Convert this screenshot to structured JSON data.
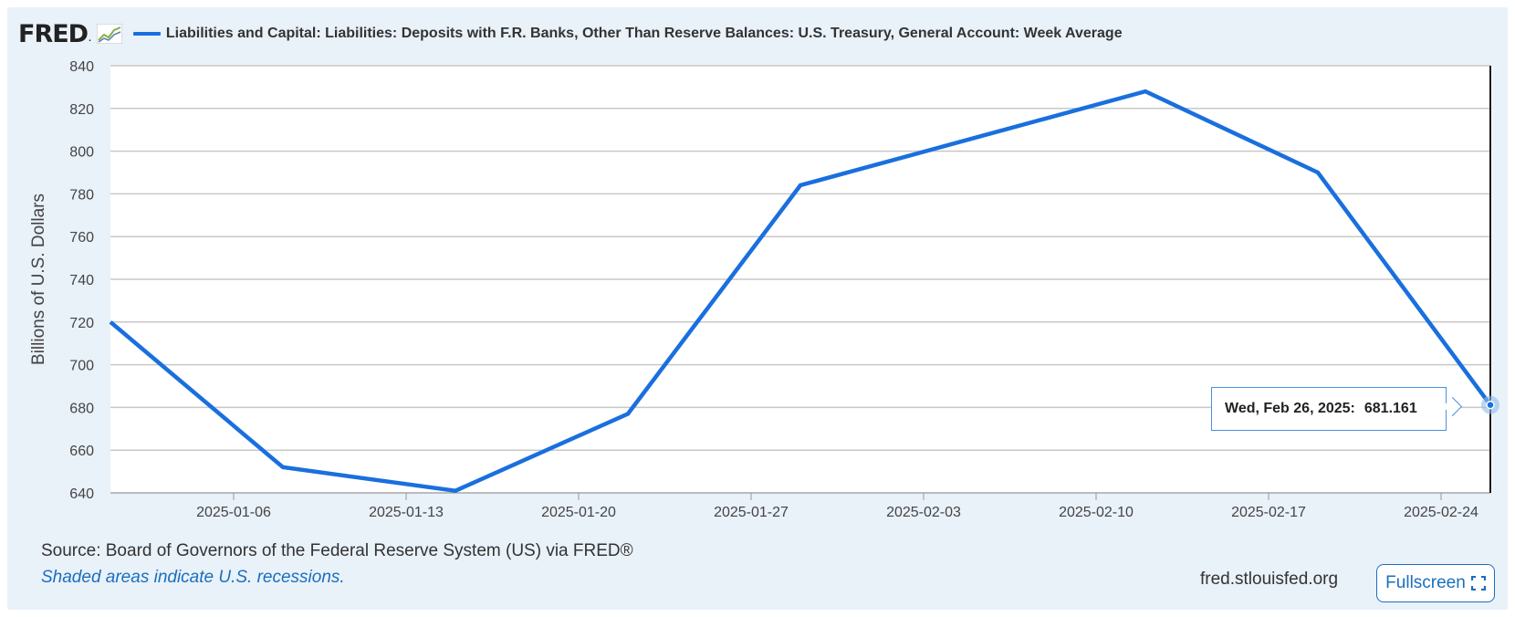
{
  "header": {
    "logo_text": "FRED",
    "logo_dot": ".",
    "legend_label": "Liabilities and Capital: Liabilities: Deposits with F.R. Banks, Other Than Reserve Balances: U.S. Treasury, General Account: Week Average"
  },
  "tooltip": {
    "date": "Wed, Feb 26, 2025:",
    "value": "681.161"
  },
  "footer": {
    "source": "Source: Board of Governors of the Federal Reserve System (US) via FRED®",
    "note": "Shaded areas indicate U.S. recessions.",
    "site": "fred.stlouisfed.org",
    "fullscreen_label": "Fullscreen"
  },
  "colors": {
    "series": "#1a6fde",
    "background": "#e9f1f9",
    "plot": "#ffffff",
    "grid": "#c8c8c8",
    "link": "#1a6fbd"
  },
  "chart_data": {
    "type": "line",
    "title": "",
    "xlabel": "",
    "ylabel": "Billions of U.S. Dollars",
    "x_tick_labels": [
      "2025-01-06",
      "2025-01-13",
      "2025-01-20",
      "2025-01-27",
      "2025-02-03",
      "2025-02-10",
      "2025-02-17",
      "2025-02-24"
    ],
    "y_tick_labels": [
      "640",
      "660",
      "680",
      "700",
      "720",
      "740",
      "760",
      "780",
      "800",
      "820",
      "840"
    ],
    "ylim": [
      640,
      840
    ],
    "xlim": [
      "2025-01-01",
      "2025-02-26"
    ],
    "grid": true,
    "series": [
      {
        "name": "Liabilities and Capital: Liabilities: Deposits with F.R. Banks, Other Than Reserve Balances: U.S. Treasury, General Account: Week Average",
        "x": [
          "2025-01-01",
          "2025-01-08",
          "2025-01-15",
          "2025-01-22",
          "2025-01-29",
          "2025-02-05",
          "2025-02-12",
          "2025-02-19",
          "2025-02-26"
        ],
        "y": [
          720,
          652,
          641,
          677,
          784,
          806,
          828,
          790,
          681.161
        ]
      }
    ]
  }
}
